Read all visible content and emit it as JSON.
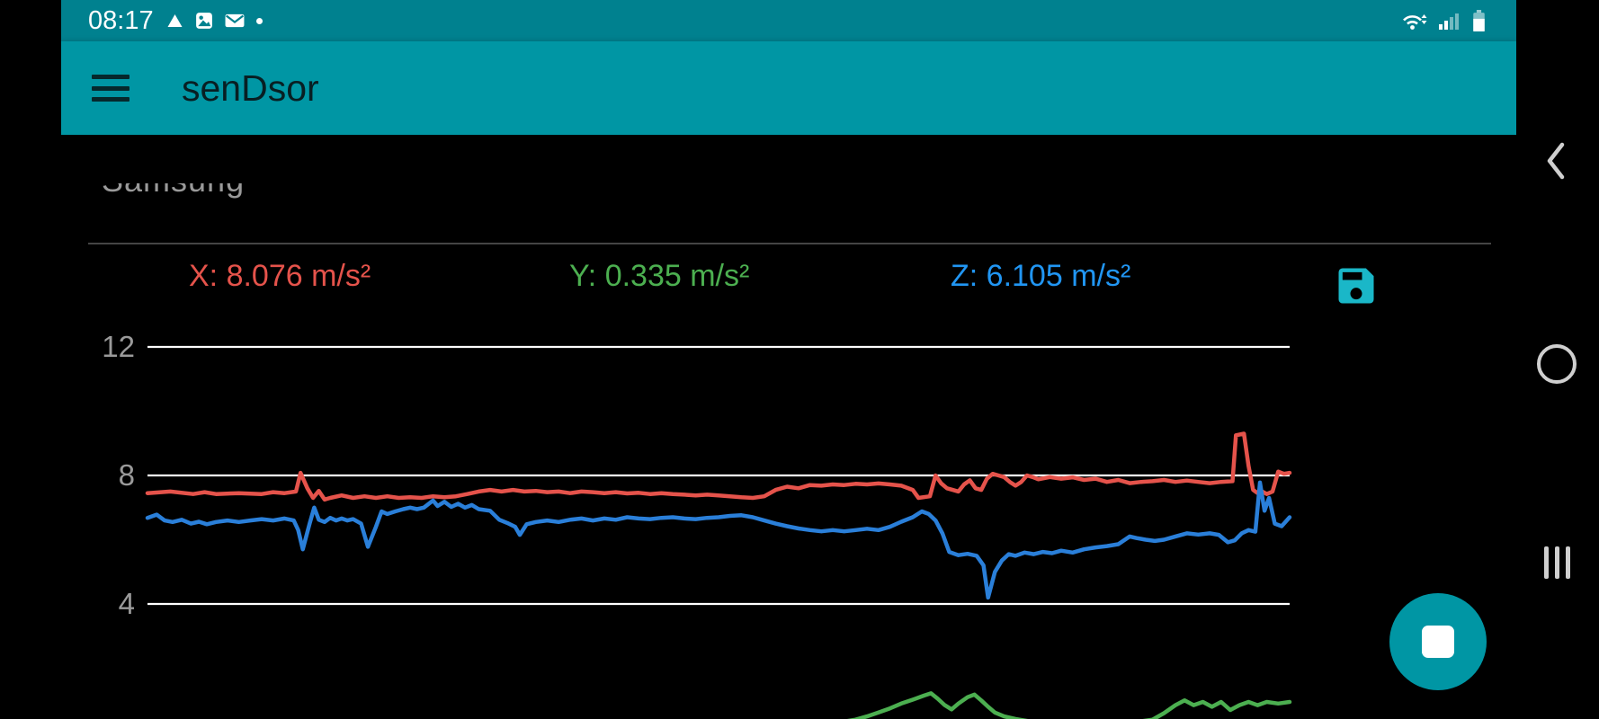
{
  "status": {
    "time": "08:17",
    "icons_left": [
      "drive-icon",
      "photos-icon",
      "email-icon",
      "notification-dot"
    ],
    "icons_right": [
      "wifi-icon",
      "signal-icon",
      "battery-icon"
    ]
  },
  "app_bar": {
    "title": "senDsor",
    "bg_color": "#0096a4"
  },
  "content": {
    "clipped_header": "Samsung"
  },
  "readings": {
    "x_label": "X: 8.076 m/s²",
    "y_label": "Y: 0.335 m/s²",
    "z_label": "Z: 6.105 m/s²",
    "x_value": 8.076,
    "y_value": 0.335,
    "z_value": 6.105,
    "unit": "m/s²"
  },
  "colors": {
    "x_series": "#e5534b",
    "y_series": "#4caf50",
    "z_series": "#2a7fd9",
    "status_bar": "#00818f",
    "app_bar": "#0096a4",
    "save_icon": "#1ab7c8",
    "fab": "#0096a4",
    "gridline": "#ffffff",
    "tick_label": "#9a9a9a"
  },
  "nav": {
    "back": "back",
    "home": "home",
    "recents": "recents"
  },
  "fab": {
    "action": "stop-recording"
  },
  "chart_data": {
    "type": "line",
    "yticks": [
      12,
      8,
      4
    ],
    "x_range": [
      0,
      100
    ],
    "grid": true,
    "legend_position": "top",
    "series": [
      {
        "name": "Y",
        "color": "#4caf50",
        "width": 4.5,
        "points": [
          [
            0,
            0.3
          ],
          [
            10,
            0.32
          ],
          [
            20,
            0.3
          ],
          [
            30,
            0.32
          ],
          [
            40,
            0.3
          ],
          [
            50,
            0.32
          ],
          [
            55,
            0.3
          ],
          [
            58,
            0.32
          ],
          [
            60,
            0.3
          ],
          [
            61,
            0.34
          ],
          [
            62,
            0.4
          ],
          [
            63,
            0.5
          ],
          [
            64,
            0.62
          ],
          [
            65,
            0.75
          ],
          [
            66,
            0.9
          ],
          [
            67,
            1.02
          ],
          [
            68,
            1.15
          ],
          [
            68.6,
            1.22
          ],
          [
            69.2,
            1.05
          ],
          [
            69.8,
            0.85
          ],
          [
            70.4,
            0.72
          ],
          [
            71,
            0.9
          ],
          [
            71.8,
            1.1
          ],
          [
            72.4,
            1.18
          ],
          [
            73,
            1.0
          ],
          [
            73.6,
            0.8
          ],
          [
            74.2,
            0.62
          ],
          [
            75,
            0.5
          ],
          [
            76,
            0.42
          ],
          [
            77,
            0.36
          ],
          [
            78,
            0.3
          ],
          [
            80,
            0.28
          ],
          [
            82,
            0.3
          ],
          [
            84,
            0.27
          ],
          [
            86,
            0.3
          ],
          [
            88,
            0.4
          ],
          [
            89,
            0.6
          ],
          [
            90,
            0.85
          ],
          [
            90.8,
            1.0
          ],
          [
            91.6,
            0.85
          ],
          [
            92.4,
            0.95
          ],
          [
            93.2,
            0.8
          ],
          [
            94,
            0.95
          ],
          [
            94.8,
            0.7
          ],
          [
            95.6,
            0.85
          ],
          [
            96.4,
            0.95
          ],
          [
            97.2,
            0.85
          ],
          [
            98,
            0.95
          ],
          [
            99,
            0.9
          ],
          [
            100,
            0.95
          ]
        ]
      },
      {
        "name": "X",
        "color": "#e5534b",
        "width": 4.5,
        "points": [
          [
            0,
            7.45
          ],
          [
            2,
            7.5
          ],
          [
            4,
            7.42
          ],
          [
            5,
            7.48
          ],
          [
            6,
            7.42
          ],
          [
            8,
            7.45
          ],
          [
            10,
            7.42
          ],
          [
            11,
            7.48
          ],
          [
            12,
            7.45
          ],
          [
            13,
            7.5
          ],
          [
            13.4,
            8.08
          ],
          [
            14,
            7.6
          ],
          [
            14.5,
            7.3
          ],
          [
            15,
            7.52
          ],
          [
            15.5,
            7.25
          ],
          [
            16,
            7.3
          ],
          [
            17,
            7.38
          ],
          [
            18,
            7.3
          ],
          [
            19,
            7.35
          ],
          [
            20,
            7.3
          ],
          [
            21,
            7.35
          ],
          [
            22,
            7.3
          ],
          [
            23,
            7.32
          ],
          [
            24,
            7.3
          ],
          [
            25,
            7.35
          ],
          [
            26,
            7.32
          ],
          [
            27,
            7.35
          ],
          [
            28,
            7.42
          ],
          [
            29,
            7.5
          ],
          [
            30,
            7.55
          ],
          [
            31,
            7.5
          ],
          [
            32,
            7.55
          ],
          [
            33,
            7.5
          ],
          [
            34,
            7.52
          ],
          [
            35,
            7.48
          ],
          [
            36,
            7.5
          ],
          [
            37,
            7.45
          ],
          [
            38,
            7.5
          ],
          [
            39,
            7.48
          ],
          [
            40,
            7.45
          ],
          [
            41,
            7.48
          ],
          [
            42,
            7.44
          ],
          [
            43,
            7.46
          ],
          [
            44,
            7.42
          ],
          [
            45,
            7.45
          ],
          [
            46,
            7.42
          ],
          [
            47,
            7.4
          ],
          [
            48,
            7.38
          ],
          [
            49,
            7.4
          ],
          [
            50,
            7.38
          ],
          [
            51,
            7.35
          ],
          [
            52,
            7.32
          ],
          [
            53,
            7.3
          ],
          [
            54,
            7.35
          ],
          [
            55,
            7.55
          ],
          [
            56,
            7.65
          ],
          [
            57,
            7.6
          ],
          [
            58,
            7.7
          ],
          [
            59,
            7.68
          ],
          [
            60,
            7.72
          ],
          [
            61,
            7.7
          ],
          [
            62,
            7.74
          ],
          [
            63,
            7.72
          ],
          [
            64,
            7.75
          ],
          [
            65,
            7.72
          ],
          [
            66,
            7.68
          ],
          [
            67,
            7.55
          ],
          [
            67.5,
            7.3
          ],
          [
            68.5,
            7.35
          ],
          [
            69,
            8.0
          ],
          [
            69.5,
            7.75
          ],
          [
            70,
            7.6
          ],
          [
            70.5,
            7.55
          ],
          [
            71,
            7.5
          ],
          [
            71.5,
            7.72
          ],
          [
            72,
            7.85
          ],
          [
            72.5,
            7.6
          ],
          [
            73,
            7.55
          ],
          [
            73.5,
            7.9
          ],
          [
            74,
            8.05
          ],
          [
            74.5,
            8.0
          ],
          [
            75,
            7.95
          ],
          [
            75.5,
            7.8
          ],
          [
            76,
            7.68
          ],
          [
            76.5,
            7.8
          ],
          [
            77,
            8.0
          ],
          [
            77.5,
            7.95
          ],
          [
            78,
            7.88
          ],
          [
            79,
            7.95
          ],
          [
            80,
            7.9
          ],
          [
            81,
            7.94
          ],
          [
            82,
            7.86
          ],
          [
            83,
            7.9
          ],
          [
            84,
            7.8
          ],
          [
            85,
            7.86
          ],
          [
            86,
            7.76
          ],
          [
            87,
            7.8
          ],
          [
            88,
            7.82
          ],
          [
            89,
            7.86
          ],
          [
            90,
            7.8
          ],
          [
            91,
            7.84
          ],
          [
            92,
            7.8
          ],
          [
            93,
            7.76
          ],
          [
            94,
            7.8
          ],
          [
            95,
            7.82
          ],
          [
            95.3,
            9.25
          ],
          [
            96,
            9.3
          ],
          [
            96.4,
            8.3
          ],
          [
            96.8,
            7.55
          ],
          [
            97.2,
            7.45
          ],
          [
            97.6,
            7.5
          ],
          [
            98,
            7.42
          ],
          [
            98.5,
            7.5
          ],
          [
            99,
            8.12
          ],
          [
            99.5,
            8.05
          ],
          [
            100,
            8.08
          ]
        ]
      },
      {
        "name": "Z",
        "color": "#2a7fd9",
        "width": 4.5,
        "points": [
          [
            0,
            6.68
          ],
          [
            0.8,
            6.78
          ],
          [
            1.5,
            6.6
          ],
          [
            2.2,
            6.55
          ],
          [
            3,
            6.62
          ],
          [
            3.8,
            6.5
          ],
          [
            4.5,
            6.56
          ],
          [
            5.2,
            6.48
          ],
          [
            6,
            6.55
          ],
          [
            7,
            6.6
          ],
          [
            8,
            6.55
          ],
          [
            9,
            6.6
          ],
          [
            10,
            6.64
          ],
          [
            11,
            6.6
          ],
          [
            12,
            6.66
          ],
          [
            12.8,
            6.6
          ],
          [
            13.2,
            6.3
          ],
          [
            13.6,
            5.7
          ],
          [
            14.2,
            6.5
          ],
          [
            14.6,
            7.0
          ],
          [
            15,
            6.62
          ],
          [
            15.5,
            6.55
          ],
          [
            16,
            6.68
          ],
          [
            16.5,
            6.6
          ],
          [
            17,
            6.66
          ],
          [
            17.5,
            6.6
          ],
          [
            18,
            6.64
          ],
          [
            18.7,
            6.5
          ],
          [
            19.3,
            5.78
          ],
          [
            20,
            6.4
          ],
          [
            20.5,
            6.88
          ],
          [
            21,
            6.8
          ],
          [
            21.7,
            6.88
          ],
          [
            22.4,
            6.95
          ],
          [
            23,
            7.0
          ],
          [
            23.6,
            6.95
          ],
          [
            24.2,
            7.0
          ],
          [
            25,
            7.22
          ],
          [
            25.4,
            7.05
          ],
          [
            26,
            7.18
          ],
          [
            26.6,
            7.02
          ],
          [
            27.2,
            7.12
          ],
          [
            27.8,
            7.0
          ],
          [
            28.4,
            7.08
          ],
          [
            29,
            6.95
          ],
          [
            30,
            6.9
          ],
          [
            30.8,
            6.62
          ],
          [
            31.5,
            6.52
          ],
          [
            32.2,
            6.4
          ],
          [
            32.6,
            6.15
          ],
          [
            33.2,
            6.48
          ],
          [
            34,
            6.55
          ],
          [
            35,
            6.6
          ],
          [
            36,
            6.55
          ],
          [
            37,
            6.62
          ],
          [
            38,
            6.66
          ],
          [
            39,
            6.6
          ],
          [
            40,
            6.66
          ],
          [
            41,
            6.62
          ],
          [
            42,
            6.7
          ],
          [
            43,
            6.66
          ],
          [
            44,
            6.64
          ],
          [
            45,
            6.68
          ],
          [
            46,
            6.7
          ],
          [
            47,
            6.66
          ],
          [
            48,
            6.64
          ],
          [
            49,
            6.68
          ],
          [
            50,
            6.7
          ],
          [
            51,
            6.74
          ],
          [
            52,
            6.76
          ],
          [
            53,
            6.7
          ],
          [
            54,
            6.6
          ],
          [
            55,
            6.5
          ],
          [
            56,
            6.42
          ],
          [
            57,
            6.35
          ],
          [
            58,
            6.3
          ],
          [
            59,
            6.26
          ],
          [
            60,
            6.3
          ],
          [
            61,
            6.26
          ],
          [
            62,
            6.3
          ],
          [
            63,
            6.34
          ],
          [
            64,
            6.3
          ],
          [
            65,
            6.4
          ],
          [
            66,
            6.56
          ],
          [
            67,
            6.7
          ],
          [
            67.8,
            6.88
          ],
          [
            68.4,
            6.8
          ],
          [
            69,
            6.6
          ],
          [
            69.6,
            6.2
          ],
          [
            70.2,
            5.62
          ],
          [
            71,
            5.52
          ],
          [
            71.8,
            5.56
          ],
          [
            72.6,
            5.5
          ],
          [
            73.2,
            5.2
          ],
          [
            73.6,
            4.2
          ],
          [
            74.2,
            5.0
          ],
          [
            74.8,
            5.35
          ],
          [
            75.4,
            5.55
          ],
          [
            76,
            5.5
          ],
          [
            76.8,
            5.6
          ],
          [
            77.6,
            5.55
          ],
          [
            78.4,
            5.62
          ],
          [
            79.2,
            5.58
          ],
          [
            80,
            5.66
          ],
          [
            81,
            5.6
          ],
          [
            82,
            5.7
          ],
          [
            83,
            5.76
          ],
          [
            84,
            5.8
          ],
          [
            85,
            5.86
          ],
          [
            86,
            6.1
          ],
          [
            86.6,
            6.05
          ],
          [
            87.4,
            6.0
          ],
          [
            88.2,
            5.96
          ],
          [
            89,
            6.0
          ],
          [
            90,
            6.1
          ],
          [
            91,
            6.2
          ],
          [
            92,
            6.16
          ],
          [
            93,
            6.2
          ],
          [
            93.8,
            6.15
          ],
          [
            94.6,
            5.92
          ],
          [
            95.2,
            5.98
          ],
          [
            95.8,
            6.2
          ],
          [
            96.4,
            6.3
          ],
          [
            97,
            6.25
          ],
          [
            97.4,
            7.78
          ],
          [
            97.8,
            6.9
          ],
          [
            98.2,
            7.3
          ],
          [
            98.7,
            6.5
          ],
          [
            99.3,
            6.42
          ],
          [
            100,
            6.7
          ]
        ]
      }
    ]
  }
}
